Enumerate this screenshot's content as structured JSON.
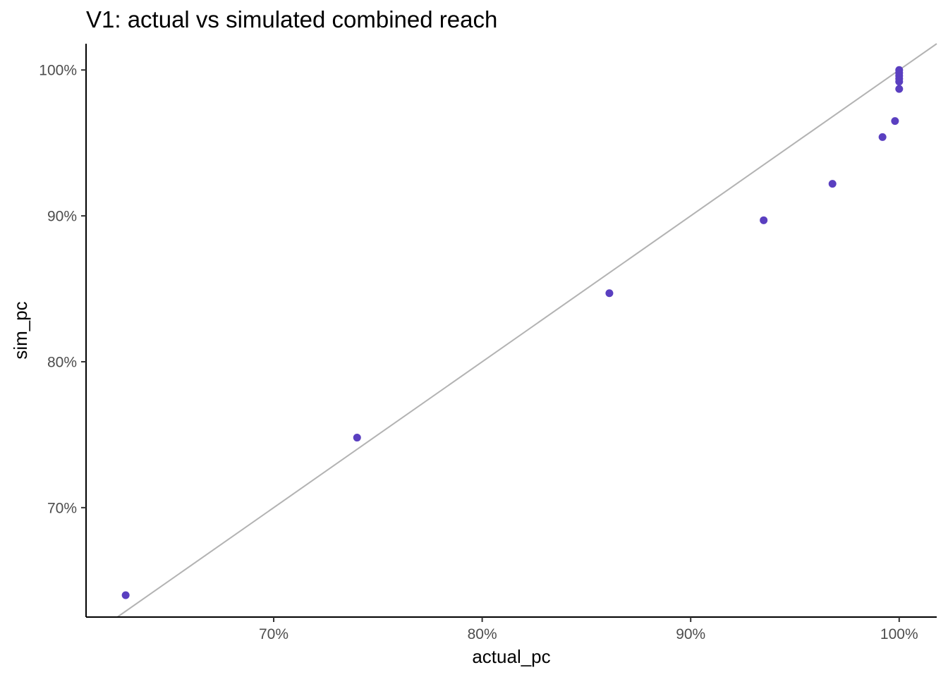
{
  "chart_data": {
    "type": "scatter",
    "title": "V1: actual vs simulated combined reach",
    "xlabel": "actual_pc",
    "ylabel": "sim_pc",
    "xlim": [
      0.61,
      1.018
    ],
    "ylim": [
      0.625,
      1.018
    ],
    "x_ticks": [
      {
        "value": 0.7,
        "label": "70%"
      },
      {
        "value": 0.8,
        "label": "80%"
      },
      {
        "value": 0.9,
        "label": "90%"
      },
      {
        "value": 1.0,
        "label": "100%"
      }
    ],
    "y_ticks": [
      {
        "value": 0.7,
        "label": "70%"
      },
      {
        "value": 0.8,
        "label": "80%"
      },
      {
        "value": 0.9,
        "label": "90%"
      },
      {
        "value": 1.0,
        "label": "100%"
      }
    ],
    "reference_line": {
      "type": "identity",
      "slope": 1,
      "intercept": 0,
      "color": "#b3b3b3"
    },
    "point_color": "#5a3fc0",
    "grid": false,
    "points": [
      {
        "x": 0.629,
        "y": 0.64
      },
      {
        "x": 0.74,
        "y": 0.748
      },
      {
        "x": 0.861,
        "y": 0.847
      },
      {
        "x": 0.935,
        "y": 0.897
      },
      {
        "x": 0.968,
        "y": 0.922
      },
      {
        "x": 0.992,
        "y": 0.954
      },
      {
        "x": 0.998,
        "y": 0.965
      },
      {
        "x": 1.0,
        "y": 0.987
      },
      {
        "x": 1.0,
        "y": 0.992
      },
      {
        "x": 1.0,
        "y": 0.994
      },
      {
        "x": 1.0,
        "y": 0.996
      },
      {
        "x": 1.0,
        "y": 0.998
      },
      {
        "x": 1.0,
        "y": 1.0
      }
    ]
  }
}
